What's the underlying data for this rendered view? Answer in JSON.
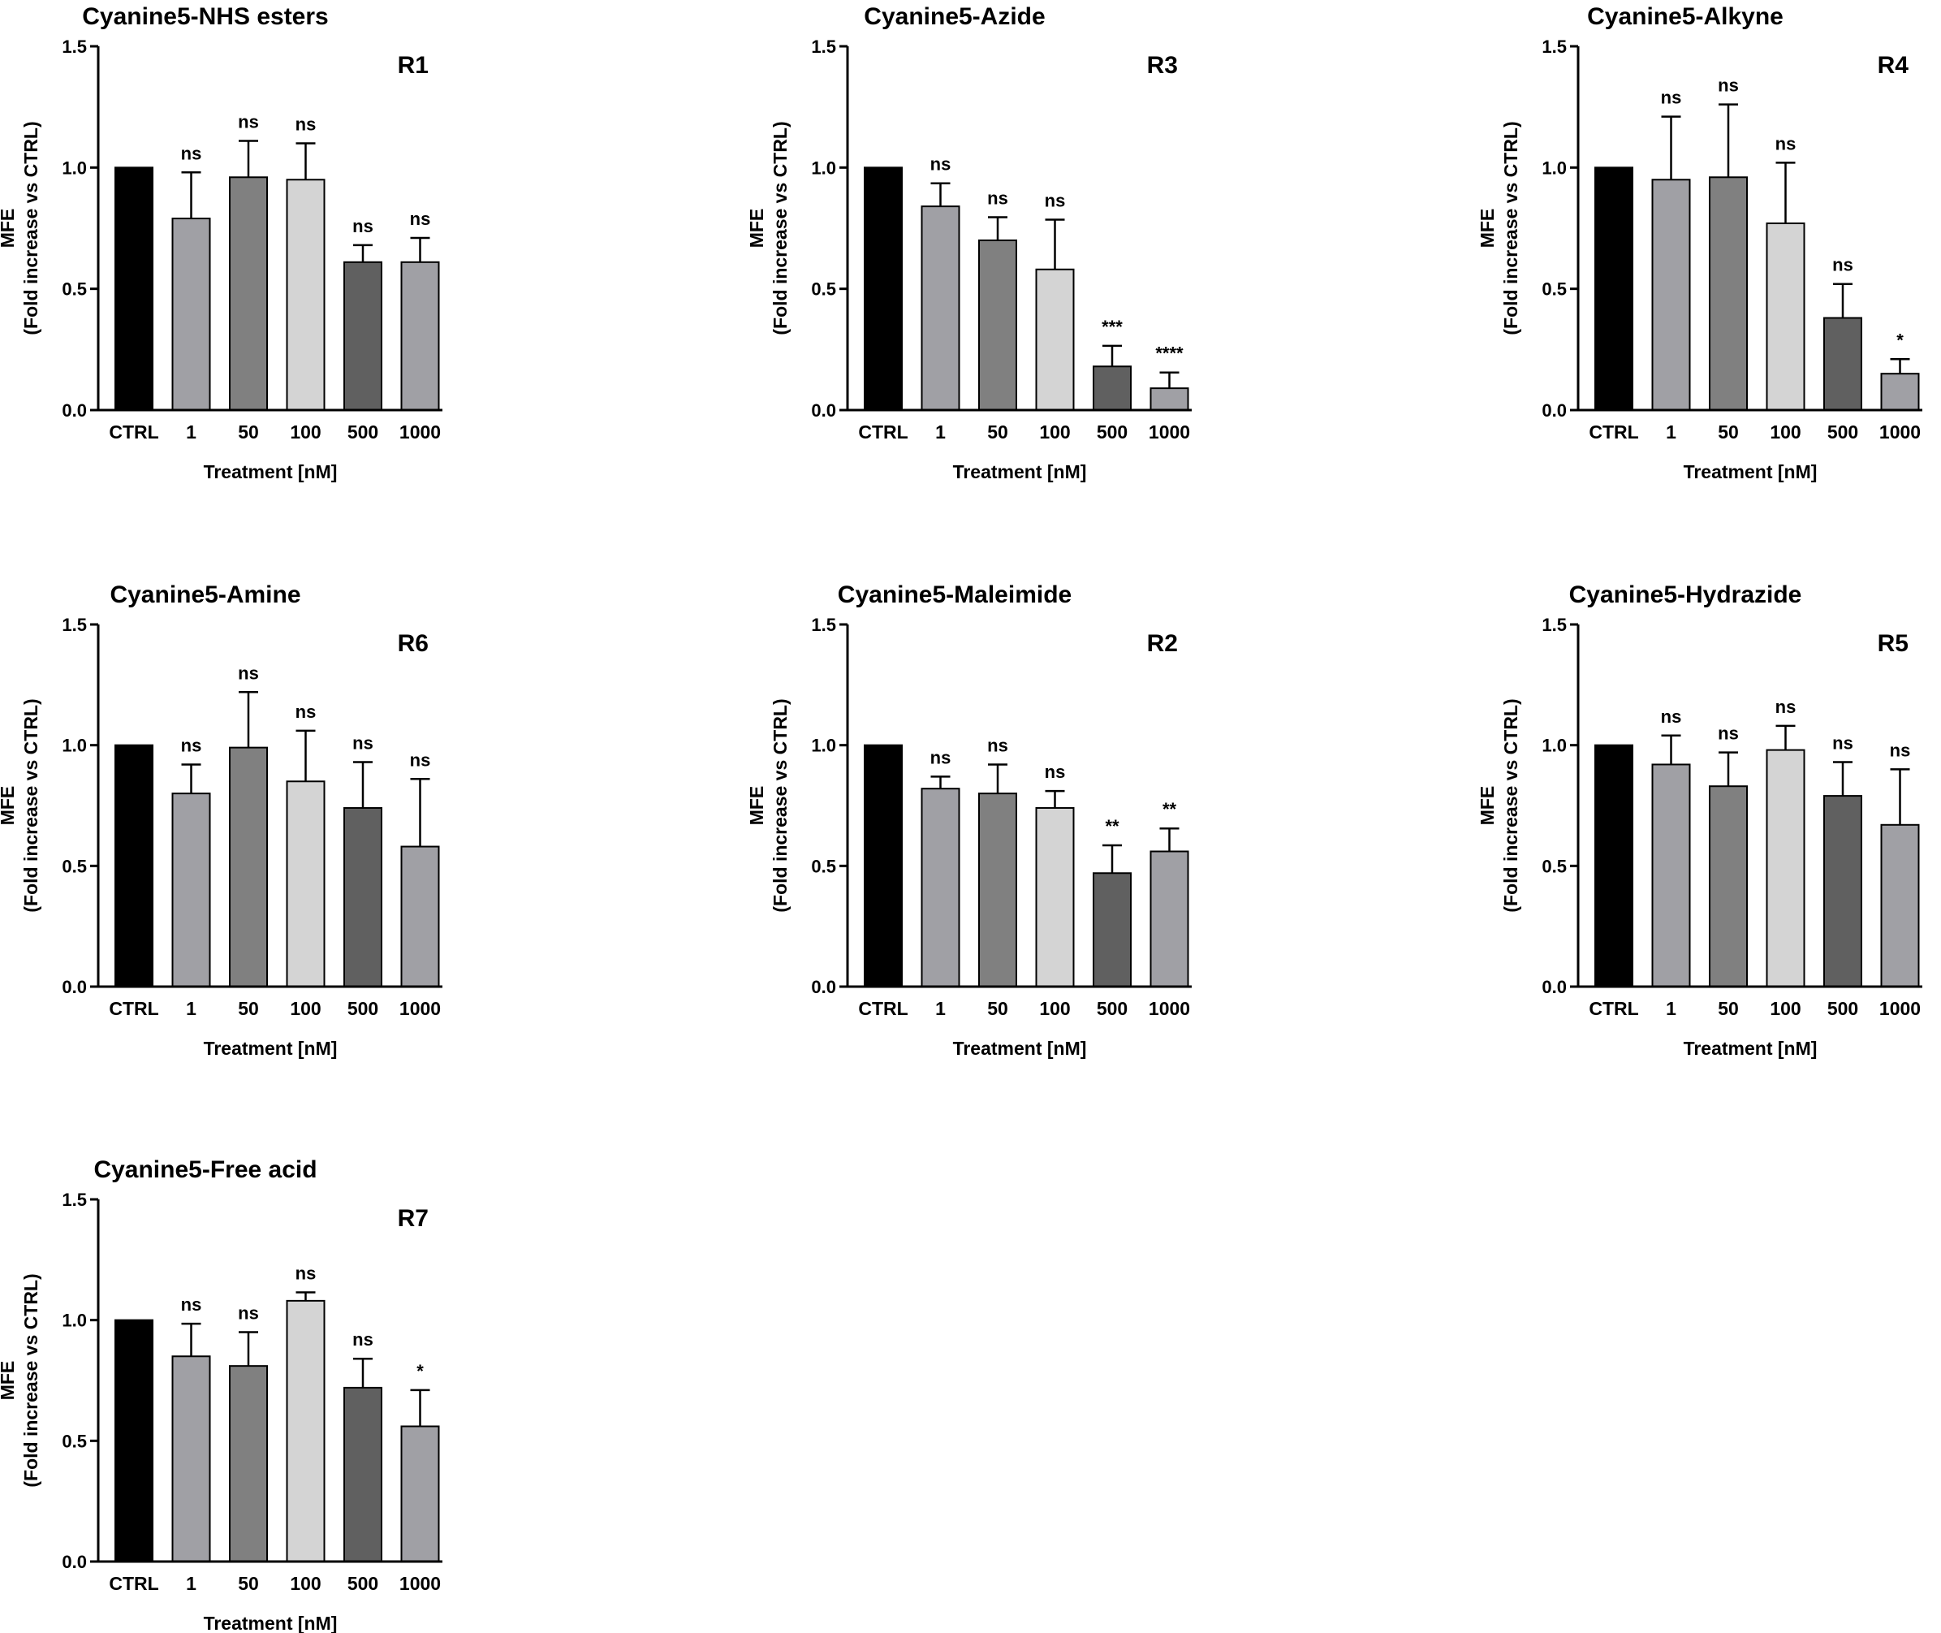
{
  "chart_data": [
    {
      "type": "bar",
      "title": "Cyanine5-NHS esters",
      "panel": "R1",
      "categories": [
        "CTRL",
        "1",
        "50",
        "100",
        "500",
        "1000"
      ],
      "values": [
        1.0,
        0.79,
        0.96,
        0.95,
        0.61,
        0.61
      ],
      "errors": [
        0,
        0.19,
        0.15,
        0.15,
        0.07,
        0.1
      ],
      "significance": [
        "",
        "ns",
        "ns",
        "ns",
        "ns",
        "ns"
      ],
      "xlabel": "Treatment [nM]",
      "ylabel": [
        "MFE",
        "(Fold increase vs CTRL)"
      ],
      "ylim": [
        0,
        1.5
      ],
      "yticks": [
        "0.0",
        "0.5",
        "1.0",
        "1.5"
      ]
    },
    {
      "type": "bar",
      "title": "Cyanine5-Azide",
      "panel": "R3",
      "categories": [
        "CTRL",
        "1",
        "50",
        "100",
        "500",
        "1000"
      ],
      "values": [
        1.0,
        0.84,
        0.7,
        0.58,
        0.18,
        0.09
      ],
      "errors": [
        0,
        0.095,
        0.095,
        0.205,
        0.085,
        0.065
      ],
      "significance": [
        "",
        "ns",
        "ns",
        "ns",
        "***",
        "****"
      ],
      "xlabel": "Treatment [nM]",
      "ylabel": [
        "MFE",
        "(Fold increase vs CTRL)"
      ],
      "ylim": [
        0,
        1.5
      ],
      "yticks": [
        "0.0",
        "0.5",
        "1.0",
        "1.5"
      ]
    },
    {
      "type": "bar",
      "title": "Cyanine5-Alkyne",
      "panel": "R4",
      "categories": [
        "CTRL",
        "1",
        "50",
        "100",
        "500",
        "1000"
      ],
      "values": [
        1.0,
        0.95,
        0.96,
        0.77,
        0.38,
        0.15
      ],
      "errors": [
        0,
        0.26,
        0.3,
        0.25,
        0.14,
        0.06
      ],
      "significance": [
        "",
        "ns",
        "ns",
        "ns",
        "ns",
        "*"
      ],
      "xlabel": "Treatment [nM]",
      "ylabel": [
        "MFE",
        "(Fold increase vs CTRL)"
      ],
      "ylim": [
        0,
        1.5
      ],
      "yticks": [
        "0.0",
        "0.5",
        "1.0",
        "1.5"
      ]
    },
    {
      "type": "bar",
      "title": "Cyanine5-Amine",
      "panel": "R6",
      "categories": [
        "CTRL",
        "1",
        "50",
        "100",
        "500",
        "1000"
      ],
      "values": [
        1.0,
        0.8,
        0.99,
        0.85,
        0.74,
        0.58
      ],
      "errors": [
        0,
        0.12,
        0.23,
        0.21,
        0.19,
        0.28
      ],
      "significance": [
        "",
        "ns",
        "ns",
        "ns",
        "ns",
        "ns"
      ],
      "xlabel": "Treatment [nM]",
      "ylabel": [
        "MFE",
        "(Fold increase vs CTRL)"
      ],
      "ylim": [
        0,
        1.5
      ],
      "yticks": [
        "0.0",
        "0.5",
        "1.0",
        "1.5"
      ]
    },
    {
      "type": "bar",
      "title": "Cyanine5-Maleimide",
      "panel": "R2",
      "categories": [
        "CTRL",
        "1",
        "50",
        "100",
        "500",
        "1000"
      ],
      "values": [
        1.0,
        0.82,
        0.8,
        0.74,
        0.47,
        0.56
      ],
      "errors": [
        0,
        0.05,
        0.12,
        0.07,
        0.115,
        0.095
      ],
      "significance": [
        "",
        "ns",
        "ns",
        "ns",
        "**",
        "**"
      ],
      "xlabel": "Treatment [nM]",
      "ylabel": [
        "MFE",
        "(Fold increase vs CTRL)"
      ],
      "ylim": [
        0,
        1.5
      ],
      "yticks": [
        "0.0",
        "0.5",
        "1.0",
        "1.5"
      ]
    },
    {
      "type": "bar",
      "title": "Cyanine5-Hydrazide",
      "panel": "R5",
      "categories": [
        "CTRL",
        "1",
        "50",
        "100",
        "500",
        "1000"
      ],
      "values": [
        1.0,
        0.92,
        0.83,
        0.98,
        0.79,
        0.67
      ],
      "errors": [
        0,
        0.12,
        0.14,
        0.1,
        0.14,
        0.23
      ],
      "significance": [
        "",
        "ns",
        "ns",
        "ns",
        "ns",
        "ns"
      ],
      "xlabel": "Treatment [nM]",
      "ylabel": [
        "MFE",
        "(Fold increase vs CTRL)"
      ],
      "ylim": [
        0,
        1.5
      ],
      "yticks": [
        "0.0",
        "0.5",
        "1.0",
        "1.5"
      ]
    },
    {
      "type": "bar",
      "title": "Cyanine5-Free acid",
      "panel": "R7",
      "categories": [
        "CTRL",
        "1",
        "50",
        "100",
        "500",
        "1000"
      ],
      "values": [
        1.0,
        0.85,
        0.81,
        1.08,
        0.72,
        0.56
      ],
      "errors": [
        0,
        0.135,
        0.14,
        0.035,
        0.12,
        0.15
      ],
      "significance": [
        "",
        "ns",
        "ns",
        "ns",
        "ns",
        "*"
      ],
      "xlabel": "Treatment [nM]",
      "ylabel": [
        "MFE",
        "(Fold increase vs CTRL)"
      ],
      "ylim": [
        0,
        1.5
      ],
      "yticks": [
        "0.0",
        "0.5",
        "1.0",
        "1.5"
      ]
    }
  ],
  "colors": {
    "bars": [
      "#000000",
      "#a0a0a5",
      "#808080",
      "#d4d4d4",
      "#606060",
      "#a0a0a5"
    ],
    "axis": "#000000",
    "bar_outline": "#000000"
  }
}
